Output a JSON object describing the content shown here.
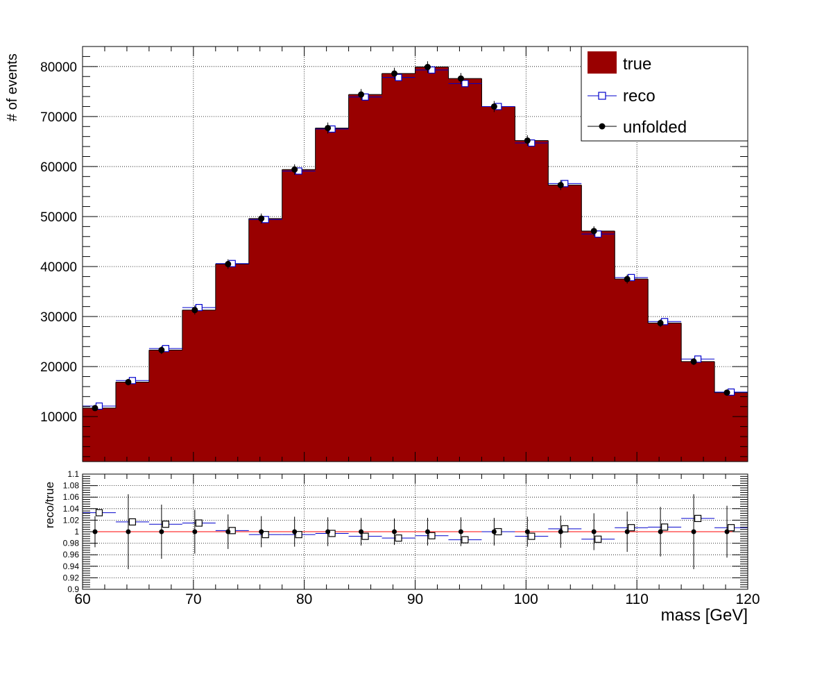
{
  "colors": {
    "true_fill": "#990000",
    "reco": "#0000cc",
    "unfolded": "#000000",
    "ratio_line": "#ff0000"
  },
  "legend": {
    "position": "top-right",
    "entries": [
      "true",
      "reco",
      "unfolded"
    ]
  },
  "chart_data": [
    {
      "type": "bar",
      "xlabel": "",
      "ylabel": "# of events",
      "xlim": [
        60,
        120
      ],
      "ylim": [
        1000,
        84000
      ],
      "grid": true,
      "yticks": [
        10000,
        20000,
        30000,
        40000,
        50000,
        60000,
        70000,
        80000
      ],
      "bin_edges": [
        60,
        63,
        66,
        69,
        72,
        75,
        78,
        81,
        84,
        87,
        90,
        93,
        96,
        99,
        102,
        105,
        108,
        111,
        114,
        117,
        120
      ],
      "series": [
        {
          "name": "true",
          "style": "filled-histogram",
          "values": [
            11700,
            16900,
            23300,
            31300,
            40500,
            49600,
            59400,
            67700,
            74400,
            78600,
            79900,
            77600,
            72000,
            65200,
            56300,
            47100,
            37500,
            28700,
            21000,
            14800
          ]
        },
        {
          "name": "reco",
          "style": "open-square",
          "values": [
            12100,
            17200,
            23600,
            31800,
            40600,
            49400,
            59100,
            67500,
            73900,
            77800,
            79300,
            76600,
            72000,
            64700,
            56600,
            46500,
            37800,
            29000,
            21500,
            14900
          ]
        },
        {
          "name": "unfolded",
          "style": "filled-circle",
          "values": [
            11700,
            16900,
            23300,
            31300,
            40500,
            49600,
            59400,
            67700,
            74400,
            78600,
            79900,
            77600,
            72000,
            65200,
            56300,
            47100,
            37500,
            28700,
            21000,
            14800
          ],
          "errors": [
            500,
            650,
            800,
            900,
            950,
            1000,
            1050,
            1100,
            1100,
            1150,
            1150,
            1100,
            1100,
            1050,
            1000,
            950,
            900,
            800,
            700,
            600
          ]
        }
      ]
    },
    {
      "type": "scatter",
      "xlabel": "mass [GeV]",
      "ylabel": "reco/true",
      "xlim": [
        60,
        120
      ],
      "ylim": [
        0.9,
        1.1
      ],
      "grid": true,
      "xticks": [
        60,
        70,
        80,
        90,
        100,
        110,
        120
      ],
      "yticks": [
        "0.9",
        "0.92",
        "0.94",
        "0.96",
        "0.98",
        "1",
        "1.02",
        "1.04",
        "1.06",
        "1.08",
        "1.1"
      ],
      "series": [
        {
          "name": "reco",
          "style": "open-square",
          "values": [
            1.033,
            1.017,
            1.013,
            1.015,
            1.002,
            0.995,
            0.995,
            0.997,
            0.992,
            0.989,
            0.993,
            0.986,
            1.0,
            0.992,
            1.005,
            0.987,
            1.007,
            1.008,
            1.023,
            1.007
          ]
        },
        {
          "name": "unfolded",
          "style": "filled-circle",
          "values": [
            1,
            1,
            1,
            1,
            1,
            1,
            1,
            1,
            1,
            1,
            1,
            1,
            1,
            1,
            1,
            1,
            1,
            1,
            1,
            1
          ],
          "errors": [
            0.027,
            0.065,
            0.047,
            0.038,
            0.03,
            0.027,
            0.026,
            0.025,
            0.024,
            0.023,
            0.024,
            0.025,
            0.024,
            0.026,
            0.028,
            0.032,
            0.035,
            0.043,
            0.065,
            0.045
          ]
        }
      ]
    }
  ]
}
